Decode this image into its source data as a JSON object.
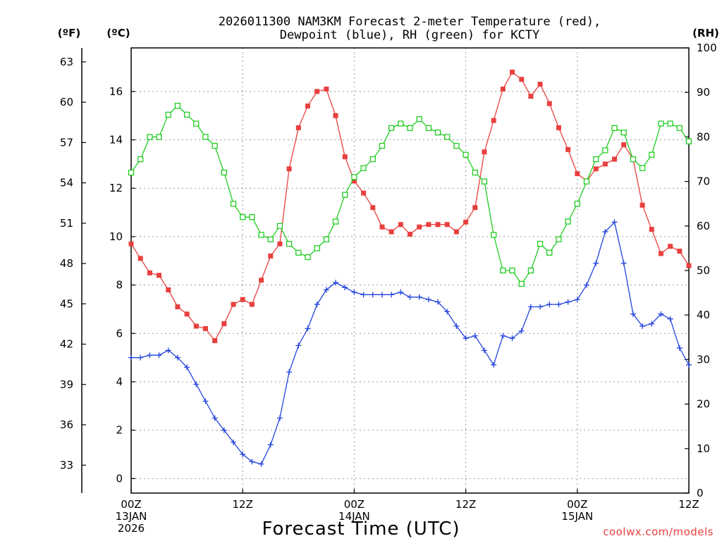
{
  "chart_data": {
    "type": "line",
    "title": [
      "2026011300 NAM3KM Forecast 2-meter Temperature (red),",
      "Dewpoint (blue), RH (green) for KCTY"
    ],
    "xlabel": "Forecast Time (UTC)",
    "credit": "coolwx.com/models",
    "unit_labels": {
      "fahrenheit": "(ºF)",
      "celsius": "(ºC)",
      "rh": "(RH)"
    },
    "x_range_hours": [
      0,
      60
    ],
    "x_ticks": [
      {
        "hour": 0,
        "lines": [
          "00Z",
          "13JAN",
          "2026"
        ]
      },
      {
        "hour": 12,
        "lines": [
          "12Z"
        ]
      },
      {
        "hour": 24,
        "lines": [
          "00Z",
          "14JAN"
        ]
      },
      {
        "hour": 36,
        "lines": [
          "12Z"
        ]
      },
      {
        "hour": 48,
        "lines": [
          "00Z",
          "15JAN"
        ]
      },
      {
        "hour": 60,
        "lines": [
          "12Z"
        ]
      }
    ],
    "ylim_celsius": [
      -0.6,
      17.8
    ],
    "celsius_ticks": [
      0,
      2,
      4,
      6,
      8,
      10,
      12,
      14,
      16
    ],
    "fahrenheit_ticks": [
      33,
      36,
      39,
      42,
      45,
      48,
      51,
      54,
      57,
      60,
      63
    ],
    "ylim_rh": [
      0,
      100
    ],
    "rh_ticks": [
      0,
      10,
      20,
      30,
      40,
      50,
      60,
      70,
      80,
      90,
      100
    ],
    "colors": {
      "temperature": "#e8403e",
      "dewpoint": "#2244dd",
      "rh": "#22cc22",
      "grid": "#999999"
    },
    "series": [
      {
        "name": "Temperature",
        "unit": "C",
        "marker": "filled-square",
        "x": [
          0,
          1,
          2,
          3,
          4,
          5,
          6,
          7,
          8,
          9,
          10,
          11,
          12,
          13,
          14,
          15,
          16,
          17,
          18,
          19,
          20,
          21,
          22,
          23,
          24,
          25,
          26,
          27,
          28,
          29,
          30,
          31,
          32,
          33,
          34,
          35,
          36,
          37,
          38,
          39,
          40,
          41,
          42,
          43,
          44,
          45,
          46,
          47,
          48,
          49,
          50,
          51,
          52,
          53,
          54,
          55,
          56,
          57,
          58,
          59,
          60
        ],
        "values": [
          9.7,
          9.1,
          8.5,
          8.4,
          7.8,
          7.1,
          6.8,
          6.3,
          6.2,
          5.7,
          6.4,
          7.2,
          7.4,
          7.2,
          8.2,
          9.2,
          9.7,
          12.8,
          14.5,
          15.4,
          16.0,
          16.1,
          15.0,
          13.3,
          12.3,
          11.8,
          11.2,
          10.4,
          10.2,
          10.5,
          10.1,
          10.4,
          10.5,
          10.5,
          10.5,
          10.2,
          10.6,
          11.2,
          13.5,
          14.8,
          16.1,
          16.8,
          16.5,
          15.8,
          16.3,
          15.5,
          14.5,
          13.6,
          12.6,
          12.3,
          12.8,
          13.0,
          13.2,
          13.8,
          13.2,
          11.3,
          10.3,
          9.3,
          9.6,
          9.4,
          8.8
        ]
      },
      {
        "name": "Dewpoint",
        "unit": "C",
        "marker": "plus",
        "x": [
          0,
          1,
          2,
          3,
          4,
          5,
          6,
          7,
          8,
          9,
          10,
          11,
          12,
          13,
          14,
          15,
          16,
          17,
          18,
          19,
          20,
          21,
          22,
          23,
          24,
          25,
          26,
          27,
          28,
          29,
          30,
          31,
          32,
          33,
          34,
          35,
          36,
          37,
          38,
          39,
          40,
          41,
          42,
          43,
          44,
          45,
          46,
          47,
          48,
          49,
          50,
          51,
          52,
          53,
          54,
          55,
          56,
          57,
          58,
          59,
          60
        ],
        "values": [
          5.0,
          5.0,
          5.1,
          5.1,
          5.3,
          5.0,
          4.6,
          3.9,
          3.2,
          2.5,
          2.0,
          1.5,
          1.0,
          0.7,
          0.6,
          1.4,
          2.5,
          4.4,
          5.5,
          6.2,
          7.2,
          7.8,
          8.1,
          7.9,
          7.7,
          7.6,
          7.6,
          7.6,
          7.6,
          7.7,
          7.5,
          7.5,
          7.4,
          7.3,
          6.9,
          6.3,
          5.8,
          5.9,
          5.3,
          4.7,
          5.9,
          5.8,
          6.1,
          7.1,
          7.1,
          7.2,
          7.2,
          7.3,
          7.4,
          8.0,
          8.9,
          10.2,
          10.6,
          8.9,
          6.8,
          6.3,
          6.4,
          6.8,
          6.6,
          5.4,
          4.7
        ]
      },
      {
        "name": "RH",
        "unit": "%",
        "marker": "open-square",
        "x": [
          0,
          1,
          2,
          3,
          4,
          5,
          6,
          7,
          8,
          9,
          10,
          11,
          12,
          13,
          14,
          15,
          16,
          17,
          18,
          19,
          20,
          21,
          22,
          23,
          24,
          25,
          26,
          27,
          28,
          29,
          30,
          31,
          32,
          33,
          34,
          35,
          36,
          37,
          38,
          39,
          40,
          41,
          42,
          43,
          44,
          45,
          46,
          47,
          48,
          49,
          50,
          51,
          52,
          53,
          54,
          55,
          56,
          57,
          58,
          59,
          60
        ],
        "values": [
          72,
          75,
          80,
          80,
          85,
          87,
          85,
          83,
          80,
          78,
          72,
          65,
          62,
          62,
          58,
          57,
          60,
          56,
          54,
          53,
          55,
          57,
          61,
          67,
          71,
          73,
          75,
          78,
          82,
          83,
          82,
          84,
          82,
          81,
          80,
          78,
          76,
          72,
          70,
          58,
          50,
          50,
          47,
          50,
          56,
          54,
          57,
          61,
          65,
          70,
          75,
          77,
          82,
          81,
          75,
          73,
          76,
          83,
          83,
          82,
          79
        ]
      }
    ]
  }
}
